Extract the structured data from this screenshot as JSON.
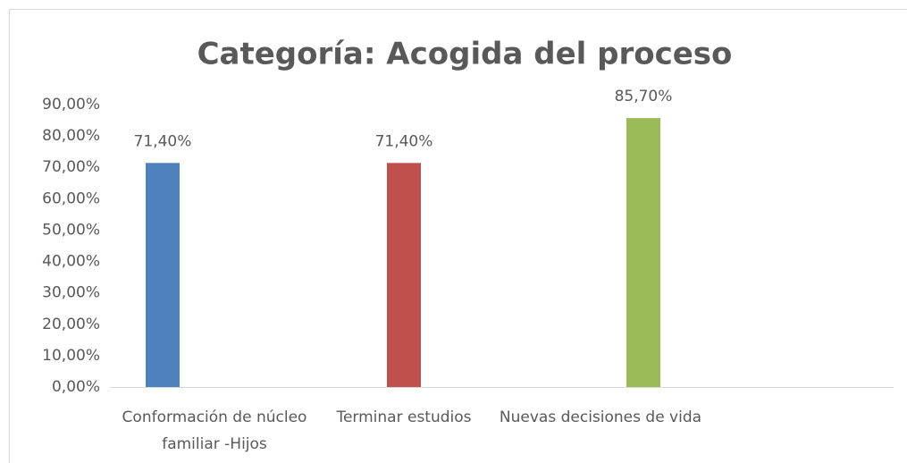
{
  "chart_data": {
    "type": "bar",
    "title": "Categoría: Acogida del proceso",
    "categories": [
      "Conformación de núcleo familiar -Hijos",
      "Terminar estudios",
      "Nuevas decisiones de vida"
    ],
    "values": [
      71.4,
      71.4,
      85.7
    ],
    "value_labels": [
      "71,40%",
      "71,40%",
      "85,70%"
    ],
    "colors": [
      "#4f81bd",
      "#c0504d",
      "#9bbb59"
    ],
    "ylim": [
      0,
      90
    ],
    "yticks": [
      {
        "value": 0,
        "label": "0,00%"
      },
      {
        "value": 10,
        "label": "10,00%"
      },
      {
        "value": 20,
        "label": "20,00%"
      },
      {
        "value": 30,
        "label": "30,00%"
      },
      {
        "value": 40,
        "label": "40,00%"
      },
      {
        "value": 50,
        "label": "50,00%"
      },
      {
        "value": 60,
        "label": "60,00%"
      },
      {
        "value": 70,
        "label": "70,00%"
      },
      {
        "value": 80,
        "label": "80,00%"
      },
      {
        "value": 90,
        "label": "90,00%"
      }
    ],
    "grid": false
  }
}
